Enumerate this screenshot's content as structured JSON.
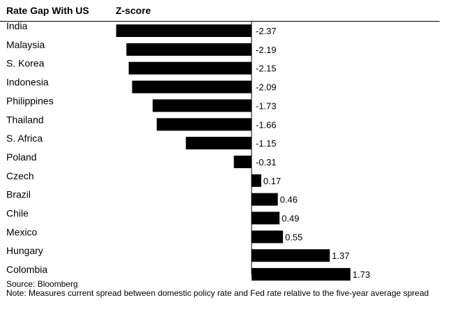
{
  "header": {
    "country_label": "Rate Gap With US",
    "score_label": "Z-score"
  },
  "footer": {
    "source": "Source: Bloomberg",
    "note": "Note: Measures current spread between domestic policy rate and Fed rate relative to the five-year average spread"
  },
  "chart_data": {
    "type": "bar",
    "orientation": "horizontal",
    "title": "",
    "xlabel": "Z-score",
    "ylabel": "Rate Gap With US",
    "categories": [
      "India",
      "Malaysia",
      "S. Korea",
      "Indonesia",
      "Philippines",
      "Thailand",
      "S. Africa",
      "Poland",
      "Czech",
      "Brazil",
      "Chile",
      "Mexico",
      "Hungary",
      "Colombia"
    ],
    "values": [
      -2.37,
      -2.19,
      -2.15,
      -2.09,
      -1.73,
      -1.66,
      -1.15,
      -0.31,
      0.17,
      0.46,
      0.49,
      0.55,
      1.37,
      1.73
    ],
    "value_labels": [
      "-2.37",
      "-2.19",
      "-2.15",
      "-2.09",
      "-1.73",
      "-1.66",
      "-1.15",
      "-0.31",
      "0.17",
      "0.46",
      "0.49",
      "0.55",
      "1.37",
      "1.73"
    ],
    "bar_color": "#000000",
    "grid": false,
    "legend": "none"
  }
}
